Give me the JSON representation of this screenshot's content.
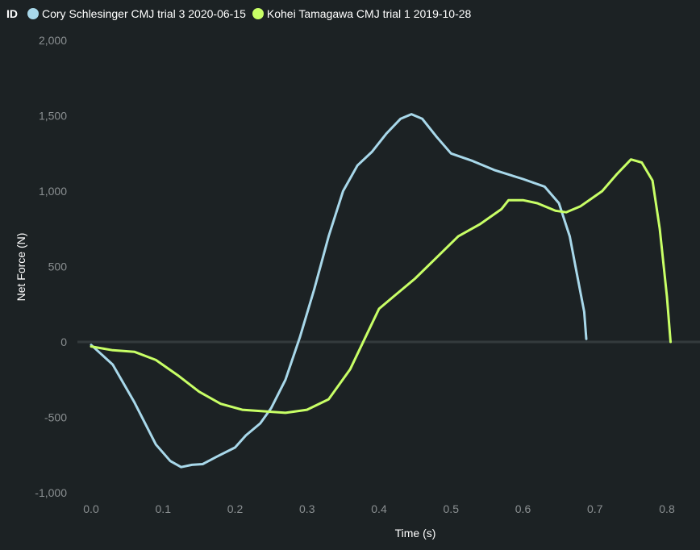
{
  "legend": {
    "title": "ID",
    "items": [
      {
        "label": "Cory Schlesinger CMJ trial 3 2020-06-15",
        "color": "#a8d8ea"
      },
      {
        "label": "Kohei Tamagawa CMJ trial 1 2019-10-28",
        "color": "#c8ff66"
      }
    ]
  },
  "chart_data": {
    "type": "line",
    "xlabel": "Time (s)",
    "ylabel": "Net Force (N)",
    "xlim": [
      0,
      0.8
    ],
    "ylim": [
      -1000,
      2000
    ],
    "xticks": [
      "0.0",
      "0.1",
      "0.2",
      "0.3",
      "0.4",
      "0.5",
      "0.6",
      "0.7",
      "0.8"
    ],
    "yticks": [
      "-1,000",
      "-500",
      "0",
      "500",
      "1,000",
      "1,500",
      "2,000"
    ],
    "zero_line": true,
    "series": [
      {
        "name": "Cory Schlesinger CMJ trial 3 2020-06-15",
        "color": "#a8d8ea",
        "points": [
          [
            0,
            -20
          ],
          [
            0.03,
            -150
          ],
          [
            0.06,
            -400
          ],
          [
            0.09,
            -680
          ],
          [
            0.11,
            -790
          ],
          [
            0.125,
            -830
          ],
          [
            0.14,
            -815
          ],
          [
            0.155,
            -810
          ],
          [
            0.175,
            -760
          ],
          [
            0.2,
            -700
          ],
          [
            0.215,
            -620
          ],
          [
            0.235,
            -540
          ],
          [
            0.25,
            -440
          ],
          [
            0.27,
            -250
          ],
          [
            0.29,
            30
          ],
          [
            0.31,
            350
          ],
          [
            0.33,
            700
          ],
          [
            0.35,
            1000
          ],
          [
            0.37,
            1170
          ],
          [
            0.39,
            1260
          ],
          [
            0.41,
            1380
          ],
          [
            0.43,
            1480
          ],
          [
            0.445,
            1510
          ],
          [
            0.46,
            1480
          ],
          [
            0.48,
            1360
          ],
          [
            0.5,
            1250
          ],
          [
            0.53,
            1200
          ],
          [
            0.56,
            1140
          ],
          [
            0.6,
            1080
          ],
          [
            0.63,
            1030
          ],
          [
            0.65,
            920
          ],
          [
            0.665,
            700
          ],
          [
            0.675,
            450
          ],
          [
            0.685,
            200
          ],
          [
            0.688,
            20
          ]
        ]
      },
      {
        "name": "Kohei Tamagawa CMJ trial 1 2019-10-28",
        "color": "#c8ff66",
        "points": [
          [
            0,
            -30
          ],
          [
            0.03,
            -55
          ],
          [
            0.06,
            -65
          ],
          [
            0.09,
            -120
          ],
          [
            0.12,
            -220
          ],
          [
            0.15,
            -330
          ],
          [
            0.18,
            -410
          ],
          [
            0.21,
            -450
          ],
          [
            0.24,
            -460
          ],
          [
            0.27,
            -470
          ],
          [
            0.3,
            -450
          ],
          [
            0.33,
            -380
          ],
          [
            0.36,
            -180
          ],
          [
            0.38,
            20
          ],
          [
            0.4,
            220
          ],
          [
            0.42,
            300
          ],
          [
            0.45,
            420
          ],
          [
            0.48,
            560
          ],
          [
            0.51,
            700
          ],
          [
            0.54,
            780
          ],
          [
            0.57,
            880
          ],
          [
            0.58,
            940
          ],
          [
            0.6,
            940
          ],
          [
            0.62,
            920
          ],
          [
            0.645,
            870
          ],
          [
            0.66,
            860
          ],
          [
            0.68,
            900
          ],
          [
            0.71,
            1000
          ],
          [
            0.73,
            1110
          ],
          [
            0.75,
            1210
          ],
          [
            0.765,
            1190
          ],
          [
            0.78,
            1070
          ],
          [
            0.79,
            750
          ],
          [
            0.8,
            300
          ],
          [
            0.805,
            0
          ]
        ]
      }
    ]
  }
}
